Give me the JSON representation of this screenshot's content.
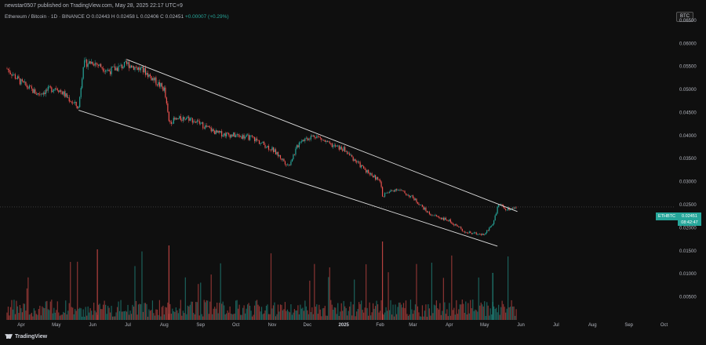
{
  "header": {
    "published_line": "newstar0507 published on TradingView.com, May 28, 2025 22:17 UTC+9",
    "legend_title": "Ethereum / Bitcoin · 1D · BINANCE",
    "legend_ohlc": "O 0.02443  H 0.02458  L 0.02406  C 0.02451",
    "legend_change": "+0.00007 (+0.29%)"
  },
  "currency_label": "BTC",
  "symbol_badge": "ETHBTC",
  "price_badge_value": "0.02451",
  "price_badge_countdown": "08:42:47",
  "footer_logo": "TradingView",
  "colors": {
    "up": "#26a69a",
    "down": "#ef5350",
    "channel": "#e0e0e0",
    "background": "#0f0f0f"
  },
  "chart_data": {
    "type": "candlestick",
    "symbol": "ETHBTC",
    "interval": "1D",
    "exchange": "BINANCE",
    "y_axis": {
      "ticks": [
        "0.06500",
        "0.06000",
        "0.05500",
        "0.05000",
        "0.04500",
        "0.04000",
        "0.03500",
        "0.03000",
        "0.02500",
        "0.02000",
        "0.01500",
        "0.01000",
        "0.00500"
      ],
      "range": [
        0.0,
        0.066
      ]
    },
    "x_axis": {
      "ticks": [
        "Apr",
        "May",
        "Jun",
        "Jul",
        "Aug",
        "Sep",
        "Oct",
        "Nov",
        "Dec",
        "2025",
        "Feb",
        "Mar",
        "Apr",
        "May",
        "Jun",
        "Jul",
        "Aug",
        "Sep",
        "Oct"
      ]
    },
    "close_path_monthly": [
      {
        "date": "2024-03-20",
        "close": 0.0545
      },
      {
        "date": "2024-04-01",
        "close": 0.0515
      },
      {
        "date": "2024-04-15",
        "close": 0.049
      },
      {
        "date": "2024-05-01",
        "close": 0.0505
      },
      {
        "date": "2024-05-20",
        "close": 0.046
      },
      {
        "date": "2024-05-24",
        "close": 0.0555
      },
      {
        "date": "2024-06-01",
        "close": 0.056
      },
      {
        "date": "2024-06-15",
        "close": 0.054
      },
      {
        "date": "2024-07-01",
        "close": 0.0555
      },
      {
        "date": "2024-07-15",
        "close": 0.054
      },
      {
        "date": "2024-08-01",
        "close": 0.05
      },
      {
        "date": "2024-08-05",
        "close": 0.043
      },
      {
        "date": "2024-08-20",
        "close": 0.044
      },
      {
        "date": "2024-09-01",
        "close": 0.0425
      },
      {
        "date": "2024-09-15",
        "close": 0.0405
      },
      {
        "date": "2024-10-01",
        "close": 0.04
      },
      {
        "date": "2024-10-15",
        "close": 0.0395
      },
      {
        "date": "2024-11-01",
        "close": 0.037
      },
      {
        "date": "2024-11-15",
        "close": 0.0335
      },
      {
        "date": "2024-11-25",
        "close": 0.039
      },
      {
        "date": "2024-12-08",
        "close": 0.04
      },
      {
        "date": "2024-12-20",
        "close": 0.038
      },
      {
        "date": "2025-01-01",
        "close": 0.037
      },
      {
        "date": "2025-01-15",
        "close": 0.0335
      },
      {
        "date": "2025-02-01",
        "close": 0.03
      },
      {
        "date": "2025-02-03",
        "close": 0.027
      },
      {
        "date": "2025-02-15",
        "close": 0.0285
      },
      {
        "date": "2025-03-01",
        "close": 0.0265
      },
      {
        "date": "2025-03-15",
        "close": 0.023
      },
      {
        "date": "2025-04-01",
        "close": 0.0215
      },
      {
        "date": "2025-04-15",
        "close": 0.019
      },
      {
        "date": "2025-05-01",
        "close": 0.0185
      },
      {
        "date": "2025-05-08",
        "close": 0.021
      },
      {
        "date": "2025-05-13",
        "close": 0.025
      },
      {
        "date": "2025-05-20",
        "close": 0.024
      },
      {
        "date": "2025-05-28",
        "close": 0.0245
      }
    ],
    "channel_lines": [
      {
        "name": "upper",
        "from": {
          "date": "2024-06-30",
          "price": 0.0565
        },
        "to": {
          "date": "2025-05-29",
          "price": 0.0235
        }
      },
      {
        "name": "lower",
        "from": {
          "date": "2024-05-20",
          "price": 0.0455
        },
        "to": {
          "date": "2025-05-12",
          "price": 0.016
        }
      }
    ],
    "last_close": 0.02451,
    "grid": false
  }
}
